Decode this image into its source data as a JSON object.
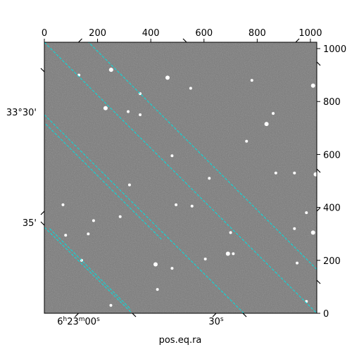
{
  "chart_data": {
    "type": "scatter",
    "title": "",
    "xlabel": "pos.eq.ra",
    "ylabel": "",
    "xlim": [
      0,
      1024
    ],
    "ylim": [
      0,
      1024
    ],
    "pixel_axes": {
      "top_ticks": [
        0,
        200,
        400,
        600,
        800,
        1000
      ],
      "right_ticks": [
        0,
        200,
        400,
        600,
        800,
        1000
      ]
    },
    "world_axes": {
      "ra_ticks": [
        {
          "h": "6",
          "m": "23",
          "s": "00",
          "type": "full",
          "label_x": 111.5,
          "label_y": 461
        },
        {
          "s": "30",
          "type": "sec",
          "label_x": 307,
          "label_y": 461
        }
      ],
      "dec_ticks": [
        {
          "label": "33°30'",
          "label_x": 52,
          "label_y": 164
        },
        {
          "label": "35'",
          "label_x": 52,
          "label_y": 321
        }
      ]
    },
    "grid": true,
    "grid_color": "#00e0e0",
    "image_background": "#7a7a7a",
    "ra_lines": [
      {
        "x1": 20,
        "y1": 320,
        "x2": 325,
        "y2": 15
      },
      {
        "x1": -40,
        "y1": 760,
        "x2": 440,
        "y2": 280
      },
      {
        "x1": 150,
        "y1": 1040,
        "x2": 1040,
        "y2": 150
      }
    ],
    "dec_lines": [
      {
        "x1": 0,
        "y1": 750,
        "x2": 750,
        "y2": 0
      },
      {
        "x1": 0,
        "y1": 325,
        "x2": 330,
        "y2": 0
      },
      {
        "x1": 0,
        "y1": 1024,
        "x2": 1024,
        "y2": 0
      }
    ],
    "stars": [
      [
        251,
        920,
        3
      ],
      [
        463,
        890,
        3
      ],
      [
        550,
        850,
        2
      ],
      [
        1010,
        860,
        3
      ],
      [
        230,
        775,
        3
      ],
      [
        315,
        762,
        2
      ],
      [
        620,
        510,
        2
      ],
      [
        480,
        595,
        2
      ],
      [
        1020,
        525,
        3
      ],
      [
        940,
        530,
        2
      ],
      [
        835,
        715,
        3
      ],
      [
        165,
        300,
        2
      ],
      [
        418,
        185,
        3
      ],
      [
        690,
        225,
        3
      ],
      [
        710,
        225,
        2
      ],
      [
        1010,
        305,
        3
      ],
      [
        185,
        350,
        2
      ],
      [
        80,
        295,
        2
      ],
      [
        320,
        485,
        2
      ],
      [
        425,
        90,
        2
      ],
      [
        870,
        530,
        2
      ],
      [
        985,
        380,
        2
      ],
      [
        495,
        410,
        2
      ],
      [
        860,
        755,
        2
      ],
      [
        130,
        900,
        2
      ],
      [
        360,
        750,
        2
      ],
      [
        780,
        880,
        2
      ],
      [
        605,
        205,
        2
      ],
      [
        950,
        190,
        2
      ],
      [
        700,
        305,
        2
      ],
      [
        250,
        30,
        2
      ],
      [
        360,
        830,
        2
      ],
      [
        140,
        200,
        2
      ],
      [
        70,
        410,
        2
      ],
      [
        940,
        320,
        2
      ],
      [
        555,
        405,
        2
      ],
      [
        480,
        170,
        2
      ],
      [
        285,
        365,
        2
      ],
      [
        760,
        650,
        2
      ],
      [
        985,
        45,
        2
      ]
    ]
  }
}
